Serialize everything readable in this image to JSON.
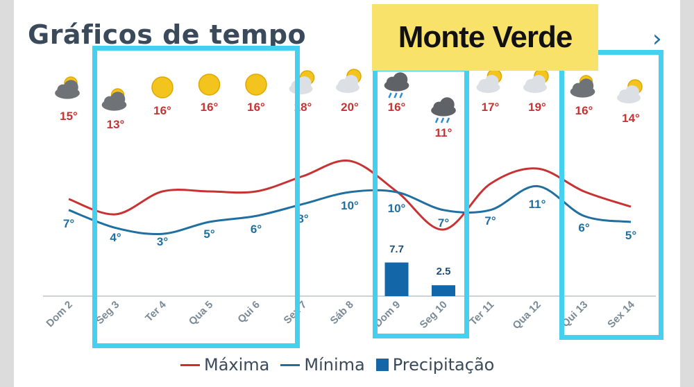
{
  "header": {
    "title": "Gráficos de tempo",
    "location": "Monte Verde",
    "next_icon": "chevron-right-icon"
  },
  "chart_data": {
    "type": "line",
    "categories": [
      "Dom 2",
      "Seg 3",
      "Ter 4",
      "Qua 5",
      "Qui 6",
      "Sex 7",
      "Sáb 8",
      "Dom 9",
      "Seg 10",
      "Ter 11",
      "Qua 12",
      "Qui 13",
      "Sex 14"
    ],
    "icons": [
      "cloudy",
      "cloudy",
      "sunny",
      "sunny",
      "sunny",
      "partly-cloudy",
      "partly-cloudy",
      "rain",
      "rain",
      "partly-cloudy",
      "partly-cloudy",
      "cloudy",
      "partly-cloudy"
    ],
    "max_labels": [
      "15°",
      "13°",
      "16°",
      "16°",
      "16°",
      "18°",
      "20°",
      "16°",
      "11°",
      "17°",
      "19°",
      "16°",
      "14°"
    ],
    "min_labels": [
      "7°",
      "4°",
      "3°",
      "5°",
      "6°",
      "8°",
      "10°",
      "10°",
      "7°",
      "7°",
      "11°",
      "6°",
      "5°"
    ],
    "precip_labels": [
      "",
      "",
      "",
      "",
      "",
      "",
      "",
      "7.7",
      "2.5",
      "",
      "",
      "",
      ""
    ],
    "series": [
      {
        "name": "Máxima",
        "values": [
          15,
          13,
          16,
          16,
          16,
          18,
          20,
          16,
          11,
          17,
          19,
          16,
          14
        ],
        "color": "#c83232"
      },
      {
        "name": "Mínima",
        "values": [
          7,
          4,
          3,
          5,
          6,
          8,
          10,
          10,
          7,
          7,
          11,
          6,
          5
        ],
        "color": "#1f6fa0"
      },
      {
        "name": "Precipitação",
        "values": [
          0,
          0,
          0,
          0,
          0,
          0,
          0,
          7.7,
          2.5,
          0,
          0,
          0,
          0
        ],
        "color": "#1367a8"
      }
    ],
    "legend": [
      "Máxima",
      "Mínima",
      "Precipitação"
    ],
    "legend_position": "bottom"
  }
}
